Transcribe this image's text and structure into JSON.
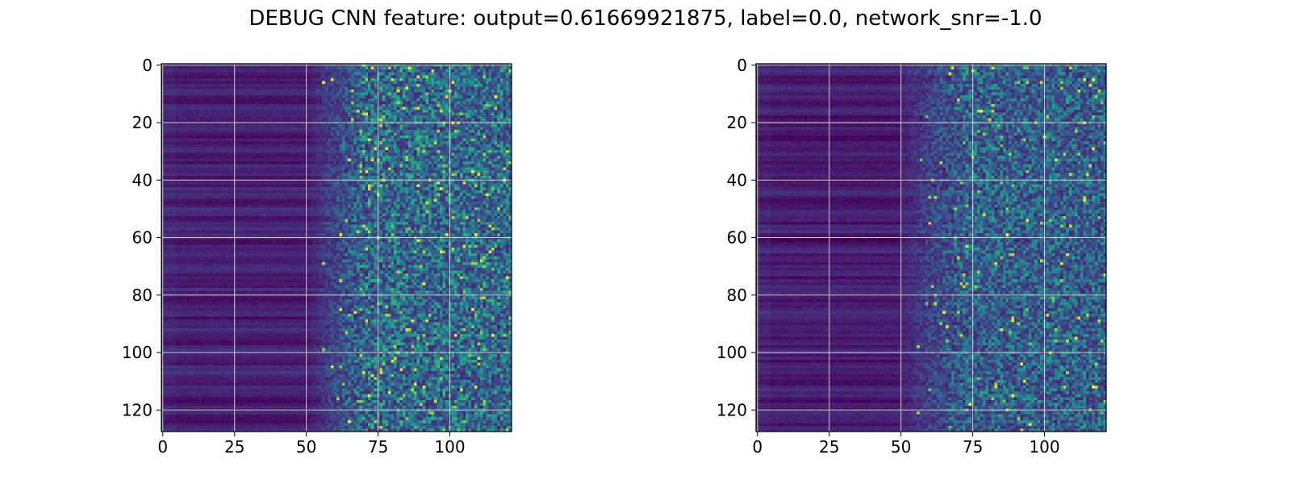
{
  "figure": {
    "suptitle": "DEBUG CNN feature: output=0.61669921875, label=0.0, network_snr=-1.0"
  },
  "chart_data": [
    {
      "type": "heatmap",
      "title": "",
      "xlabel": "",
      "ylabel": "",
      "colormap": "viridis",
      "n_cols": 122,
      "n_rows": 128,
      "xlim": [
        -0.5,
        121.5
      ],
      "ylim": [
        127.5,
        -0.5
      ],
      "xticks": [
        0,
        25,
        50,
        75,
        100
      ],
      "yticks": [
        0,
        20,
        40,
        60,
        80,
        100,
        120
      ],
      "grid": true,
      "grid_color": "#cccccc",
      "texture": {
        "quiet_region_end_col": 52,
        "transition_end_col": 70,
        "quiet_level": 0.09,
        "active_level": 0.32,
        "bright_speckle_rate": 0.03,
        "seed": 17
      }
    },
    {
      "type": "heatmap",
      "title": "",
      "xlabel": "",
      "ylabel": "",
      "colormap": "viridis",
      "n_cols": 122,
      "n_rows": 128,
      "xlim": [
        -0.5,
        121.5
      ],
      "ylim": [
        127.5,
        -0.5
      ],
      "xticks": [
        0,
        25,
        50,
        75,
        100
      ],
      "yticks": [
        0,
        20,
        40,
        60,
        80,
        100,
        120
      ],
      "grid": true,
      "grid_color": "#cccccc",
      "texture": {
        "quiet_region_end_col": 50,
        "transition_end_col": 72,
        "quiet_level": 0.08,
        "active_level": 0.28,
        "bright_speckle_rate": 0.022,
        "seed": 42
      }
    }
  ]
}
